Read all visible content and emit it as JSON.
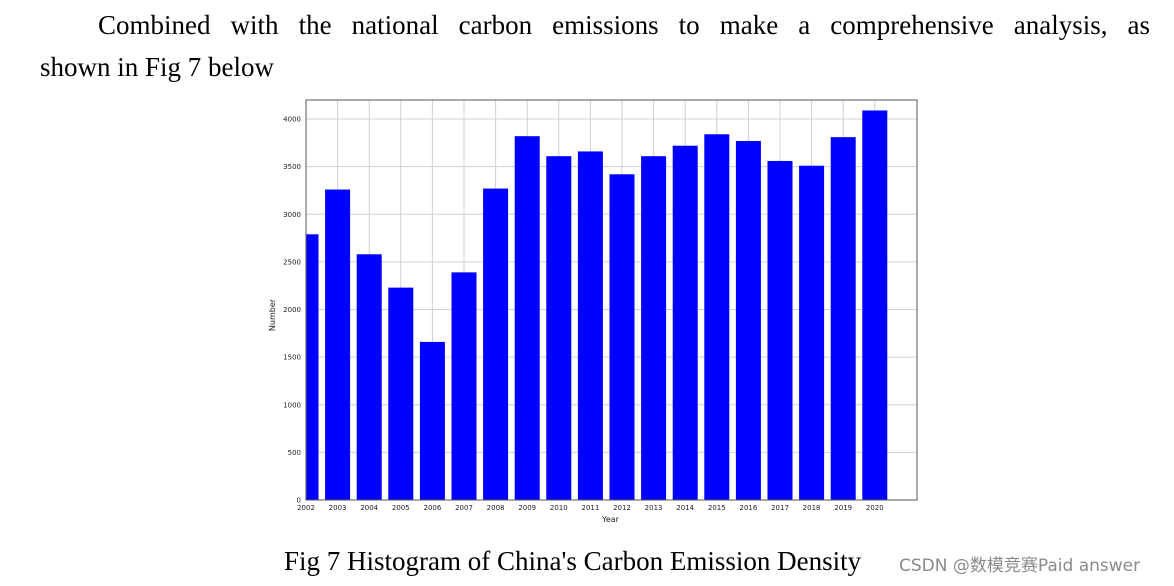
{
  "paragraph": {
    "line1": "Combined with the national carbon emissions to make a comprehensive analysis, as",
    "line2": "shown in Fig 7 below"
  },
  "caption": "Fig 7 Histogram of China's Carbon Emission Density",
  "watermark": "CSDN @数模竞赛Paid answer",
  "chart_data": {
    "type": "bar",
    "categories": [
      "2002",
      "2003",
      "2004",
      "2005",
      "2006",
      "2007",
      "2008",
      "2009",
      "2010",
      "2011",
      "2012",
      "2013",
      "2014",
      "2015",
      "2016",
      "2017",
      "2018",
      "2019",
      "2020"
    ],
    "values": [
      2790,
      3260,
      2580,
      2230,
      1660,
      2390,
      3270,
      3820,
      3610,
      3660,
      3420,
      3610,
      3720,
      3840,
      3770,
      3560,
      3510,
      3810,
      4090
    ],
    "xlabel": "Year",
    "ylabel": "Number",
    "ylim": [
      0,
      4200
    ],
    "yticks": [
      0,
      500,
      1000,
      1500,
      2000,
      2500,
      3000,
      3500,
      4000
    ],
    "bar_color": "#0000ff",
    "grid": true,
    "legend": "none"
  }
}
